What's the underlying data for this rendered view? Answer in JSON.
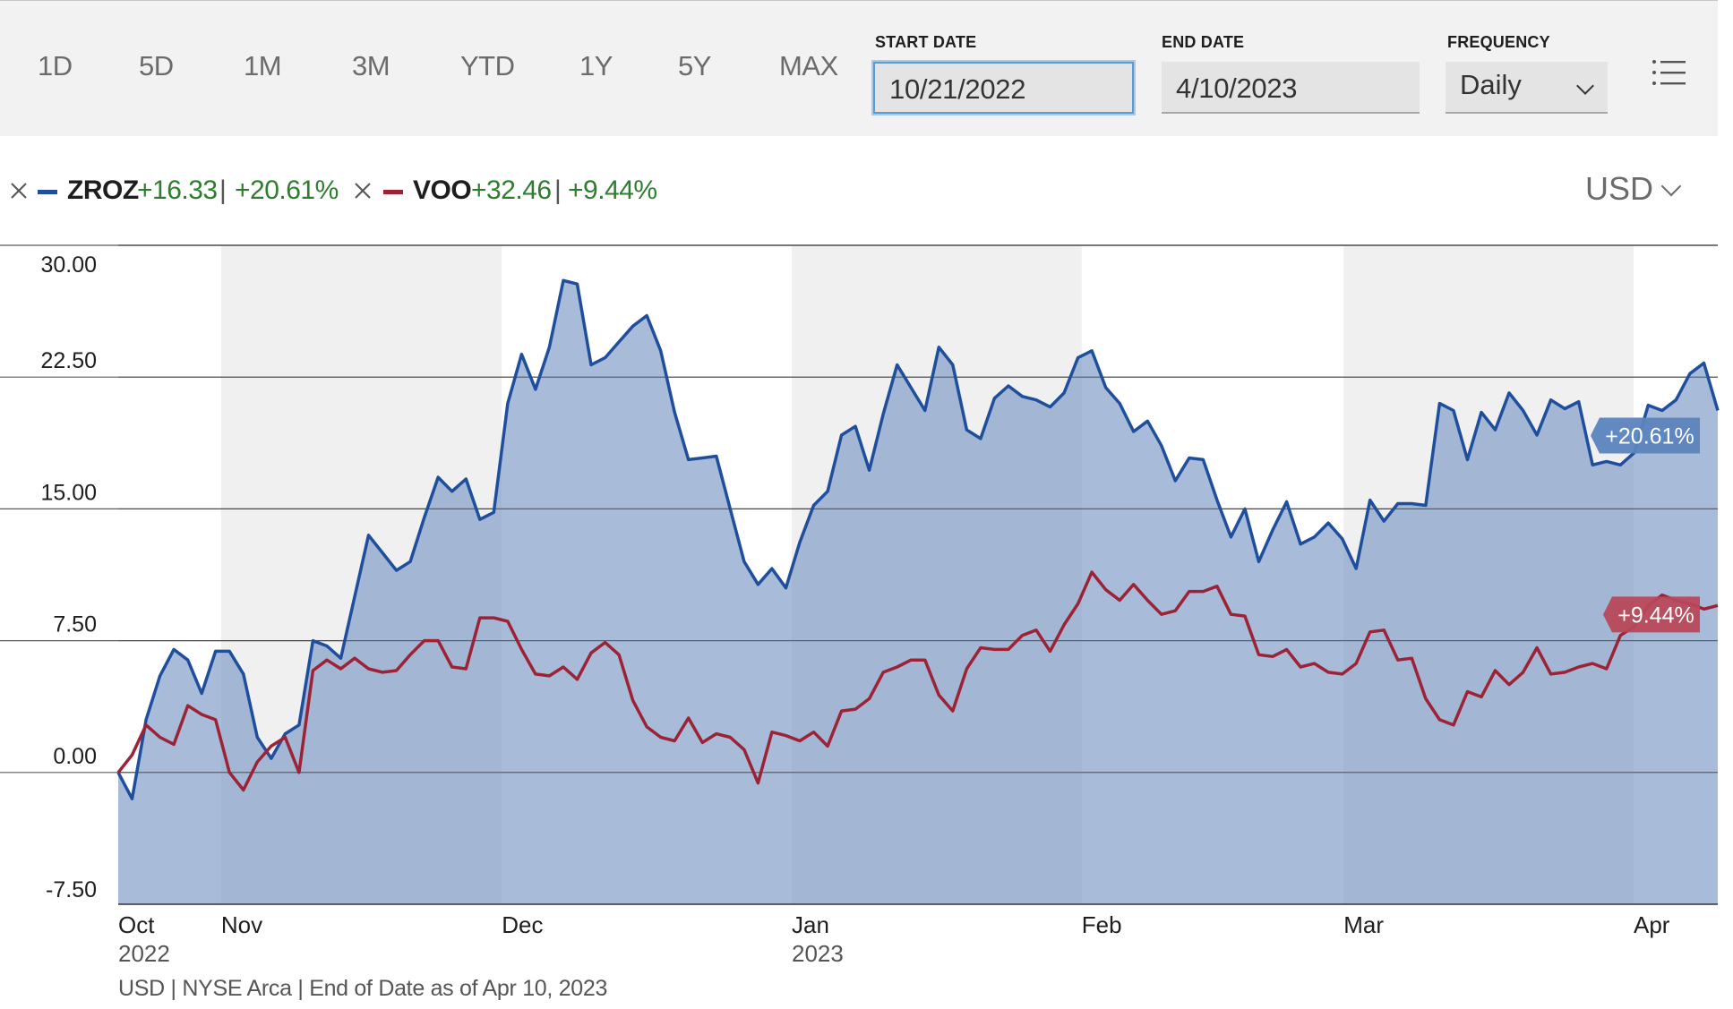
{
  "toolbar": {
    "ranges": [
      "1D",
      "5D",
      "1M",
      "3M",
      "YTD",
      "1Y",
      "5Y",
      "MAX"
    ],
    "start_date_label": "START DATE",
    "start_date": "10/21/2022",
    "end_date_label": "END DATE",
    "end_date": "4/10/2023",
    "frequency_label": "FREQUENCY",
    "frequency": "Daily",
    "menu_icon": "hamburger-list-icon"
  },
  "legend": {
    "remove_icon": "close-icon",
    "items": [
      {
        "ticker": "ZROZ",
        "change": "+16.33",
        "percent": "+20.61%",
        "color": "#1f4f9c"
      },
      {
        "ticker": "VOO",
        "change": "+32.46",
        "percent": "+9.44%",
        "color": "#9b2335"
      }
    ],
    "separator": "|",
    "currency": "USD"
  },
  "chart_data": {
    "type": "area",
    "x_range": [
      "2022-10-21",
      "2023-04-10"
    ],
    "y_ticks": [
      "30.00",
      "22.50",
      "15.00",
      "7.50",
      "0.00",
      "-7.50"
    ],
    "ylim": [
      -7.5,
      30
    ],
    "x_ticks": [
      {
        "label": "Oct",
        "sub": "2022",
        "date": "2022-10-21"
      },
      {
        "label": "Nov",
        "sub": "",
        "date": "2022-11-01"
      },
      {
        "label": "Dec",
        "sub": "",
        "date": "2022-12-01"
      },
      {
        "label": "Jan",
        "sub": "2023",
        "date": "2023-01-01"
      },
      {
        "label": "Feb",
        "sub": "",
        "date": "2023-02-01"
      },
      {
        "label": "Mar",
        "sub": "",
        "date": "2023-03-01"
      },
      {
        "label": "Apr",
        "sub": "",
        "date": "2023-04-01"
      }
    ],
    "shaded_months": [
      [
        "2022-11-01",
        "2022-12-01"
      ],
      [
        "2023-01-01",
        "2023-02-01"
      ],
      [
        "2023-03-01",
        "2023-04-01"
      ]
    ],
    "grid": true,
    "series": [
      {
        "name": "ZROZ",
        "color": "#1f4f9c",
        "fill": "#7f9cc8",
        "end_label": "+20.61%",
        "values": [
          0.0,
          -1.5,
          3.0,
          5.5,
          7.0,
          6.4,
          4.5,
          6.9,
          6.9,
          5.6,
          2.0,
          0.8,
          2.2,
          2.7,
          7.5,
          7.2,
          6.5,
          10.0,
          13.5,
          12.5,
          11.5,
          12.0,
          14.5,
          16.8,
          16.0,
          16.7,
          14.4,
          14.8,
          21.0,
          23.8,
          21.8,
          24.2,
          28.0,
          27.8,
          23.2,
          23.6,
          24.5,
          25.4,
          26.0,
          24.0,
          20.5,
          17.8,
          17.9,
          18.0,
          15.0,
          12.0,
          10.7,
          11.6,
          10.5,
          13.1,
          15.2,
          16.0,
          19.2,
          19.7,
          17.2,
          20.4,
          23.2,
          21.9,
          20.6,
          24.2,
          23.2,
          19.5,
          19.0,
          21.3,
          22.0,
          21.4,
          21.2,
          20.8,
          21.6,
          23.6,
          24.0,
          21.9,
          21.0,
          19.4,
          20.0,
          18.6,
          16.6,
          17.9,
          17.8,
          15.5,
          13.4,
          15.0,
          12.0,
          13.8,
          15.4,
          13.0,
          13.4,
          14.2,
          13.3,
          11.6,
          15.5,
          14.3,
          15.3,
          15.3,
          15.2,
          21.0,
          20.6,
          17.8,
          20.5,
          19.5,
          21.6,
          20.6,
          19.2,
          21.2,
          20.7,
          21.1,
          17.5,
          17.7,
          17.5,
          18.2,
          20.9,
          20.6,
          21.2,
          22.7,
          23.3,
          20.6
        ]
      },
      {
        "name": "VOO",
        "color": "#9b2335",
        "end_label": "+9.44%",
        "values": [
          0.0,
          1.0,
          2.7,
          2.0,
          1.6,
          3.8,
          3.3,
          3.0,
          0.0,
          -1.0,
          0.6,
          1.5,
          2.0,
          0.0,
          5.8,
          6.4,
          5.9,
          6.5,
          5.9,
          5.7,
          5.8,
          6.7,
          7.5,
          7.5,
          6.0,
          5.9,
          8.8,
          8.8,
          8.6,
          7.0,
          5.6,
          5.5,
          6.0,
          5.3,
          6.8,
          7.4,
          6.7,
          4.1,
          2.6,
          2.0,
          1.8,
          3.1,
          1.7,
          2.2,
          2.0,
          1.3,
          -0.6,
          2.3,
          2.1,
          1.8,
          2.3,
          1.5,
          3.5,
          3.6,
          4.2,
          5.7,
          6.0,
          6.4,
          6.4,
          4.4,
          3.5,
          5.9,
          7.1,
          7.0,
          7.0,
          7.8,
          8.1,
          6.9,
          8.4,
          9.6,
          11.4,
          10.4,
          9.8,
          10.7,
          9.8,
          9.0,
          9.2,
          10.3,
          10.3,
          10.6,
          9.0,
          8.9,
          6.7,
          6.6,
          7.0,
          6.0,
          6.2,
          5.7,
          5.6,
          6.2,
          8.0,
          8.1,
          6.4,
          6.5,
          4.2,
          3.0,
          2.7,
          4.6,
          4.3,
          5.8,
          5.0,
          5.7,
          7.1,
          5.6,
          5.7,
          6.0,
          6.2,
          5.9,
          7.8,
          8.3,
          9.5,
          10.1,
          9.8,
          9.6,
          9.3,
          9.5
        ]
      }
    ]
  },
  "footnote": "USD | NYSE Arca | End of Date as of Apr 10, 2023"
}
